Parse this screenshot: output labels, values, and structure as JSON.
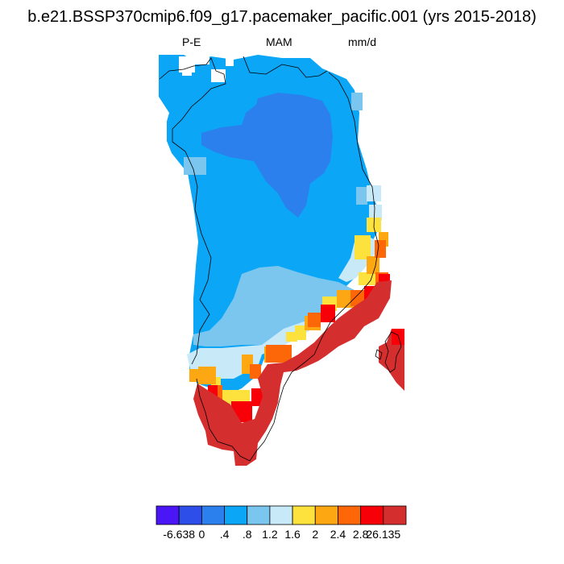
{
  "title": "b.e21.BSSP370cmip6.f09_g17.pacemaker_pacific.001 (yrs 2015-2018)",
  "subtitle": {
    "left": "P-E",
    "center": "MAM",
    "right": "mm/d"
  },
  "colors": {
    "c0": "#4b16f5",
    "c1": "#2d4ee8",
    "c2": "#2c80ee",
    "c3": "#0ba6f6",
    "c4": "#7ac6ef",
    "c5": "#c8e9f8",
    "c6": "#fde23e",
    "c7": "#fda712",
    "c8": "#fd6708",
    "c9": "#f80008",
    "c10": "#d52e2e",
    "coast": "#000000"
  },
  "legend": {
    "ticks": [
      "-6.638",
      "0",
      ".4",
      ".8",
      "1.2",
      "1.6",
      "2",
      "2.4",
      "2.8",
      "26.135"
    ],
    "bins": 11
  }
}
